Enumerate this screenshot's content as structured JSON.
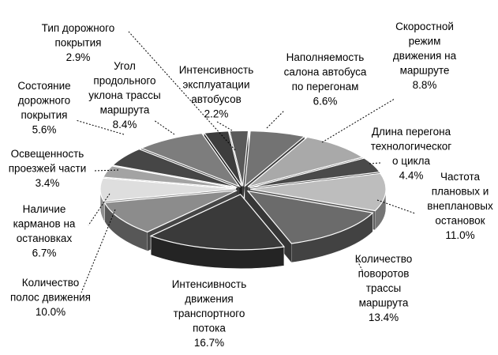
{
  "chart_data": {
    "type": "pie",
    "style": "3d-exploded",
    "title": "",
    "legend": "none",
    "slices": [
      {
        "label": "Наполняемость салона автобуса по перегонам",
        "value": 6.6,
        "value_label": "6.6%",
        "color": "#737373"
      },
      {
        "label": "Скоростной режим движения на маршруте",
        "value": 8.8,
        "value_label": "8.8%",
        "color": "#a9a9a9"
      },
      {
        "label": "Длина перегона технологического цикла",
        "value": 4.4,
        "value_label": "4.4%",
        "color": "#4a4a4a"
      },
      {
        "label": "Частота плановых и внеплановых остановок",
        "value": 11.0,
        "value_label": "11.0%",
        "color": "#bdbdbd"
      },
      {
        "label": "Количество поворотов трассы маршрута",
        "value": 13.4,
        "value_label": "13.4%",
        "color": "#6b6b6b"
      },
      {
        "label": "Интенсивность движения транспортного потока",
        "value": 16.7,
        "value_label": "16.7%",
        "color": "#3a3a3a"
      },
      {
        "label": "Количество полос движения",
        "value": 10.0,
        "value_label": "10.0%",
        "color": "#8c8c8c"
      },
      {
        "label": "Наличие карманов на остановках",
        "value": 6.7,
        "value_label": "6.7%",
        "color": "#dedede"
      },
      {
        "label": "Освещенность проезжей части",
        "value": 3.4,
        "value_label": "3.4%",
        "color": "#a3a3a3"
      },
      {
        "label": "Состояние дорожного покрытия",
        "value": 5.6,
        "value_label": "5.6%",
        "color": "#464646"
      },
      {
        "label": "Угол продольного уклона трассы маршрута",
        "value": 8.4,
        "value_label": "8.4%",
        "color": "#7d7d7d"
      },
      {
        "label": "Тип дорожного покрытия",
        "value": 2.9,
        "value_label": "2.9%",
        "color": "#3d3d3d"
      },
      {
        "label": "Интенсивность эксплуатации автобусов",
        "value": 2.2,
        "value_label": "2.2%",
        "color": "#595959"
      }
    ],
    "label_lines": [
      [
        "Наполняемость",
        "салона автобуса",
        "по перегонам",
        "6.6%"
      ],
      [
        "Скоростной",
        "режим",
        "движения на",
        "маршруте",
        "8.8%"
      ],
      [
        "Длина перегона",
        "технологическог",
        "о цикла",
        "4.4%"
      ],
      [
        "Частота",
        "плановых и",
        "внеплановых",
        "остановок",
        "11.0%"
      ],
      [
        "Количество",
        "поворотов",
        "трассы",
        "маршрута",
        "",
        "13.4%"
      ],
      [
        "Интенсивность",
        "движения",
        "транспортного",
        "потока",
        "16.7%"
      ],
      [
        "Количество",
        "полос движения",
        "10.0%"
      ],
      [
        "Наличие",
        "карманов на",
        "остановках",
        "6.7%"
      ],
      [
        "Освещенность",
        "проезжей части",
        "3.4%"
      ],
      [
        "Состояние",
        "дорожного",
        "покрытия",
        "5.6%"
      ],
      [
        "Угол",
        "продольного",
        "уклона трассы",
        "маршрута",
        "8.4%"
      ],
      [
        "Тип дорожного",
        "покрытия",
        "2.9%"
      ],
      [
        "Интенсивность",
        "эксплуатации",
        "автобусов",
        "2.2%"
      ]
    ]
  }
}
